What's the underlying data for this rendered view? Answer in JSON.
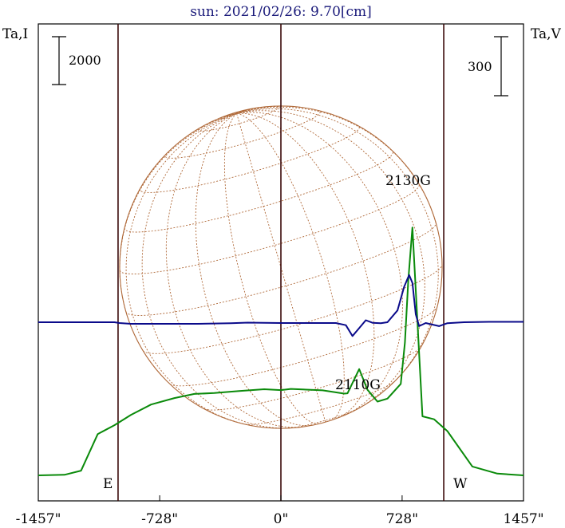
{
  "chart_data": {
    "type": "line",
    "title": "sun: 2021/02/26: 9.70[cm]",
    "left_axis_label": "Ta,I",
    "right_axis_label": "Ta,V",
    "left_scale_bar_label": "2000",
    "right_scale_bar_label": "300",
    "x_unit": "arcsec",
    "xlim": [
      -1457,
      1457
    ],
    "x_ticks": [
      {
        "value": -1457,
        "label": "-1457\""
      },
      {
        "value": -728,
        "label": "-728\""
      },
      {
        "value": 0,
        "label": "0\""
      },
      {
        "value": 728,
        "label": "728\""
      },
      {
        "value": 1457,
        "label": "1457\""
      }
    ],
    "vertical_markers": [
      -978,
      0,
      978
    ],
    "limb_labels": {
      "east": "E",
      "west": "W"
    },
    "solar_radius_arcsec": 978,
    "annotations": [
      {
        "text": "2130G",
        "x": 780
      },
      {
        "text": "2110G",
        "x": 470
      }
    ],
    "series": [
      {
        "color": "#0a8a0a",
        "axis": "left",
        "points": [
          [
            -1457,
            0
          ],
          [
            -1300,
            20
          ],
          [
            -1200,
            160
          ],
          [
            -1100,
            1400
          ],
          [
            -1000,
            1700
          ],
          [
            -900,
            2050
          ],
          [
            -780,
            2400
          ],
          [
            -640,
            2620
          ],
          [
            -520,
            2760
          ],
          [
            -400,
            2790
          ],
          [
            -250,
            2860
          ],
          [
            -100,
            2920
          ],
          [
            0,
            2890
          ],
          [
            60,
            2930
          ],
          [
            250,
            2880
          ],
          [
            380,
            2770
          ],
          [
            400,
            2780
          ],
          [
            470,
            3600
          ],
          [
            520,
            2900
          ],
          [
            580,
            2500
          ],
          [
            640,
            2600
          ],
          [
            720,
            3100
          ],
          [
            745,
            4500
          ],
          [
            765,
            6600
          ],
          [
            790,
            8400
          ],
          [
            820,
            5200
          ],
          [
            850,
            2000
          ],
          [
            920,
            1900
          ],
          [
            1000,
            1500
          ],
          [
            1150,
            300
          ],
          [
            1300,
            60
          ],
          [
            1457,
            0
          ]
        ]
      },
      {
        "color": "#0a0a8a",
        "axis": "right",
        "points": [
          [
            -1457,
            0
          ],
          [
            -1000,
            0
          ],
          [
            -970,
            -4
          ],
          [
            -900,
            -8
          ],
          [
            -500,
            -8
          ],
          [
            -300,
            -5
          ],
          [
            -200,
            -2
          ],
          [
            0,
            -4
          ],
          [
            330,
            -4
          ],
          [
            390,
            -15
          ],
          [
            430,
            -70
          ],
          [
            470,
            -30
          ],
          [
            510,
            10
          ],
          [
            550,
            -3
          ],
          [
            600,
            -5
          ],
          [
            640,
            0
          ],
          [
            700,
            60
          ],
          [
            740,
            180
          ],
          [
            770,
            240
          ],
          [
            790,
            200
          ],
          [
            810,
            40
          ],
          [
            830,
            -20
          ],
          [
            870,
            -4
          ],
          [
            900,
            -10
          ],
          [
            950,
            -20
          ],
          [
            1000,
            -5
          ],
          [
            1100,
            0
          ],
          [
            1250,
            2
          ],
          [
            1457,
            2
          ]
        ]
      }
    ]
  }
}
